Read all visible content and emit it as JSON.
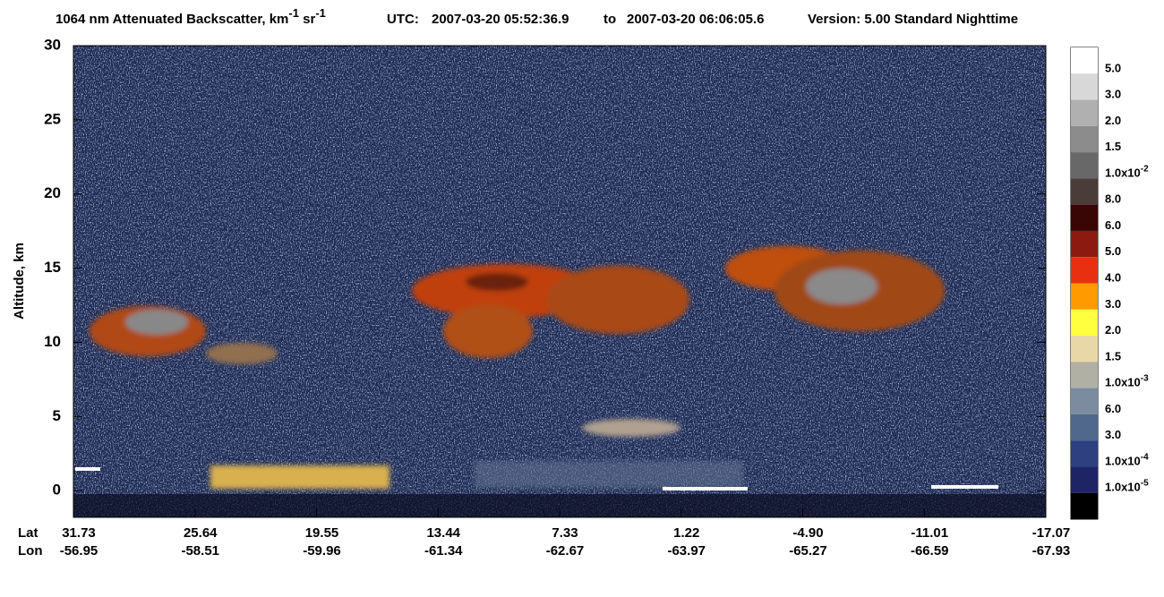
{
  "chart_data": {
    "type": "curtain",
    "title": {
      "main": "1064 nm Attenuated Backscatter, km",
      "sup1": "-1",
      "unit2": " sr",
      "sup2": "-1",
      "utc": "UTC:",
      "start": "2007-03-20 05:52:36.9",
      "to": "to",
      "end": "2007-03-20 06:06:05.6",
      "version": "Version: 5.00  Standard  Nighttime"
    },
    "ylabel": "Altitude, km",
    "ylim": [
      -1.8,
      30
    ],
    "yticks": [
      0,
      5,
      10,
      15,
      20,
      25,
      30
    ],
    "lat_label": "Lat",
    "lon_label": "Lon",
    "lat": [
      "31.73",
      "25.64",
      "19.55",
      "13.44",
      "7.33",
      "1.22",
      "-4.90",
      "-11.01",
      "-17.07"
    ],
    "lon": [
      "-56.95",
      "-58.51",
      "-59.96",
      "-61.34",
      "-62.67",
      "-63.97",
      "-65.27",
      "-66.59",
      "-67.93"
    ],
    "colorbar": {
      "colors": [
        "#ffffff",
        "#d8d8d8",
        "#b0b0b0",
        "#8c8c8c",
        "#686868",
        "#4a3c38",
        "#3a0505",
        "#8c1a10",
        "#e83010",
        "#ff9a00",
        "#ffff40",
        "#e8d8a8",
        "#b0b0a4",
        "#7c8ca0",
        "#50688c",
        "#2e4080",
        "#1e2464",
        "#000000"
      ],
      "labels": [
        [
          "5.0",
          ""
        ],
        [
          "3.0",
          ""
        ],
        [
          "2.0",
          ""
        ],
        [
          "1.5",
          ""
        ],
        [
          "1.0x10",
          "-2"
        ],
        [
          "8.0",
          ""
        ],
        [
          "6.0",
          ""
        ],
        [
          "5.0",
          ""
        ],
        [
          "4.0",
          ""
        ],
        [
          "3.0",
          ""
        ],
        [
          "2.0",
          ""
        ],
        [
          "1.5",
          ""
        ],
        [
          "1.0x10",
          "-3"
        ],
        [
          "6.0",
          ""
        ],
        [
          "3.0",
          ""
        ],
        [
          "1.0x10",
          "-4"
        ],
        [
          "1.0x10",
          "-5"
        ]
      ]
    }
  }
}
